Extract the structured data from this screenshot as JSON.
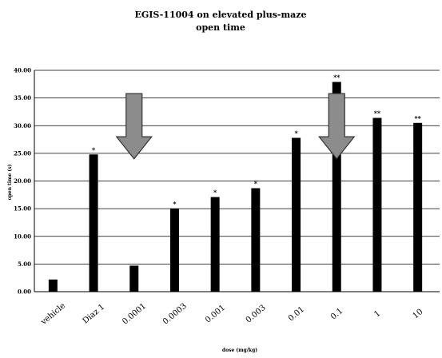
{
  "chart_data": {
    "type": "bar",
    "title": "EGIS-11004 on elevated plus-maze",
    "subtitle": "open time",
    "xlabel": "dose (mg/kg)",
    "ylabel": "open time (s)",
    "ylim": [
      0,
      40
    ],
    "yticks": [
      "0.00",
      "5.00",
      "10.00",
      "15.00",
      "20.00",
      "25.00",
      "30.00",
      "35.00",
      "40.00"
    ],
    "grid": true,
    "categories": [
      "vehicle",
      "Diaz 1",
      "0.0001",
      "0.0003",
      "0.001",
      "0.003",
      "0.01",
      "0.1",
      "1",
      "10"
    ],
    "values": [
      2.2,
      24.8,
      4.7,
      15.0,
      17.1,
      18.7,
      27.8,
      37.9,
      31.4,
      30.5
    ],
    "significance": [
      "",
      "*",
      "",
      "*",
      "*",
      "*",
      "*",
      "**",
      "**",
      "**"
    ],
    "bar_color": "#000000",
    "arrow_color": "#8c8c8c",
    "arrows_at": [
      "0.0001",
      "0.1"
    ]
  }
}
